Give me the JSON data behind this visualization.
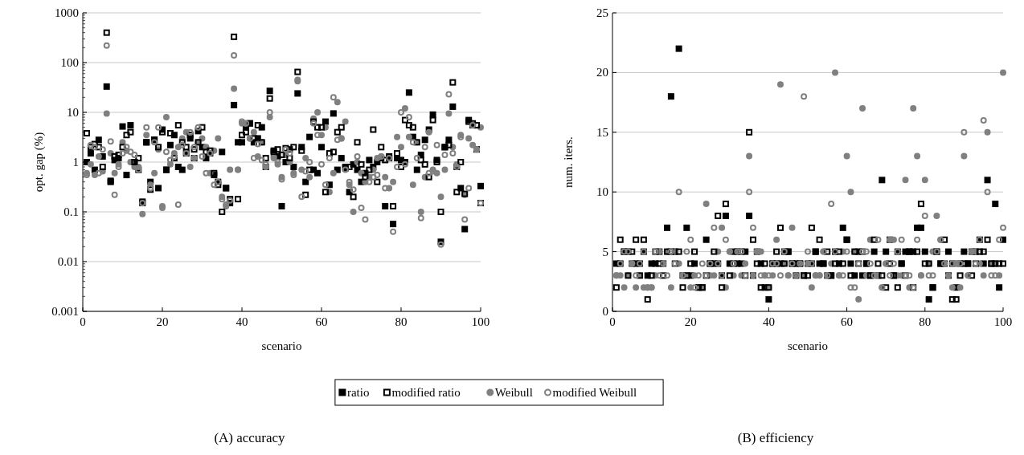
{
  "chart_data": [
    {
      "type": "scatter",
      "title": "(A) accuracy",
      "xlabel": "scenario",
      "ylabel": "opt. gap (%)",
      "log": "y",
      "grid": "y",
      "legend": "bottom",
      "xlim": [
        0,
        100
      ],
      "xticks": [
        0,
        20,
        40,
        60,
        80,
        100
      ],
      "ylim": [
        0.001,
        1000
      ],
      "yticks": [
        0.001,
        0.01,
        0.1,
        1,
        10,
        100,
        1000
      ],
      "x": [
        1,
        2,
        3,
        4,
        5,
        6,
        7,
        8,
        9,
        10,
        11,
        12,
        13,
        14,
        15,
        16,
        17,
        18,
        19,
        20,
        21,
        22,
        23,
        24,
        25,
        26,
        27,
        28,
        29,
        30,
        31,
        32,
        33,
        34,
        35,
        36,
        37,
        38,
        39,
        40,
        41,
        42,
        43,
        44,
        45,
        46,
        47,
        48,
        49,
        50,
        51,
        52,
        53,
        54,
        55,
        56,
        57,
        58,
        59,
        60,
        61,
        62,
        63,
        64,
        65,
        66,
        67,
        68,
        69,
        70,
        71,
        72,
        73,
        74,
        75,
        76,
        77,
        78,
        79,
        80,
        81,
        82,
        83,
        84,
        85,
        86,
        87,
        88,
        89,
        90,
        91,
        92,
        93,
        94,
        95,
        96,
        97,
        98,
        99,
        100
      ],
      "series": [
        {
          "name": "ratio",
          "color": "#000000",
          "marker": "square",
          "values": [
            1.0,
            1.5,
            0.7,
            2.8,
            1.3,
            33,
            0.4,
            1.1,
            1.2,
            5.2,
            0.55,
            5.5,
            1.0,
            0.7,
            0.15,
            2.5,
            0.4,
            2.8,
            0.3,
            4.5,
            0.7,
            2.2,
            3.5,
            0.8,
            0.7,
            1.5,
            3.0,
            1.2,
            4.2,
            2.0,
            1.2,
            1.5,
            0.55,
            0.4,
            1.6,
            0.3,
            0.15,
            14,
            2.5,
            2.5,
            5.0,
            6.0,
            2.5,
            3.0,
            5.0,
            0.8,
            27,
            1.7,
            1.3,
            0.13,
            1.0,
            1.8,
            0.8,
            24,
            2.0,
            0.4,
            3.2,
            0.7,
            0.6,
            2.0,
            6.5,
            0.35,
            9.5,
            0.7,
            1.2,
            0.75,
            0.25,
            0.9,
            0.7,
            0.4,
            0.6,
            1.1,
            0.8,
            1.0,
            1.2,
            0.13,
            1.3,
            0.057,
            1.2,
            1.1,
            1.0,
            25,
            3.2,
            0.7,
            1.4,
            2.8,
            4.5,
            9.0,
            1.1,
            0.025,
            2.0,
            2.8,
            13,
            0.8,
            0.3,
            0.045,
            7.0,
            5.5,
            1.8,
            0.33
          ]
        },
        {
          "name": "modified ratio",
          "color": "#000000",
          "marker": "square",
          "values": [
            3.8,
            2.0,
            2.3,
            2.0,
            0.8,
            400,
            0.42,
            1.3,
            1.4,
            2.0,
            3.5,
            4.0,
            1.0,
            1.2,
            0.16,
            2.5,
            0.28,
            2.8,
            2.0,
            4.0,
            0.7,
            3.8,
            1.2,
            5.5,
            2.5,
            2.0,
            3.5,
            1.8,
            2.5,
            5.0,
            1.6,
            1.7,
            0.6,
            0.35,
            0.1,
            0.3,
            0.18,
            330,
            0.18,
            3.5,
            4.0,
            6.0,
            3.0,
            5.5,
            2.5,
            1.2,
            19,
            1.6,
            1.8,
            1.4,
            1.9,
            1.2,
            2.0,
            65,
            1.7,
            0.22,
            0.7,
            6.5,
            5.0,
            5.0,
            0.25,
            1.5,
            1.6,
            4.0,
            5.0,
            0.8,
            0.8,
            0.2,
            2.5,
            0.9,
            0.5,
            0.7,
            4.5,
            0.4,
            2.0,
            1.1,
            1.2,
            0.13,
            1.5,
            0.8,
            7.0,
            5.5,
            5.0,
            2.5,
            1.1,
            0.9,
            0.5,
            7.0,
            1.0,
            0.1,
            2.0,
            2.2,
            40,
            0.25,
            1.0,
            0.23,
            6.5,
            6.0,
            5.5,
            0.15
          ]
        },
        {
          "name": "Weibull",
          "color": "#808080",
          "marker": "circle",
          "values": [
            0.6,
            0.9,
            0.55,
            1.3,
            0.65,
            9.5,
            1.5,
            0.6,
            0.9,
            2.5,
            1.7,
            1.0,
            0.8,
            0.8,
            0.09,
            3.5,
            0.35,
            0.6,
            1.8,
            0.13,
            8.0,
            0.9,
            1.5,
            2.0,
            3.0,
            4.0,
            0.8,
            1.2,
            2.5,
            3.0,
            2.0,
            0.6,
            1.7,
            3.0,
            0.2,
            0.13,
            0.7,
            30,
            0.7,
            6.0,
            6.0,
            3.0,
            4.0,
            1.3,
            2.5,
            0.8,
            8.0,
            1.3,
            0.9,
            0.5,
            1.4,
            1.0,
            0.6,
            45,
            0.7,
            1.2,
            0.5,
            7.5,
            10,
            3.5,
            5.0,
            0.25,
            0.6,
            16,
            3.0,
            6.5,
            0.35,
            0.1,
            1.0,
            0.6,
            0.4,
            0.5,
            0.7,
            1.2,
            1.3,
            0.5,
            0.3,
            0.4,
            3.2,
            2.0,
            12,
            3.2,
            0.35,
            2.5,
            0.1,
            0.5,
            4.0,
            0.7,
            0.6,
            0.2,
            0.7,
            9.5,
            2.0,
            0.9,
            3.5,
            0.22,
            3.0,
            2.2,
            1.8,
            5.0
          ]
        },
        {
          "name": "modified Weibull",
          "color": "#808080",
          "marker": "circle",
          "values": [
            0.55,
            2.2,
            2.0,
            0.6,
            1.8,
            220,
            2.6,
            0.22,
            0.8,
            1.5,
            2.0,
            1.6,
            1.4,
            0.7,
            0.15,
            5.0,
            0.3,
            2.5,
            5.0,
            0.12,
            1.6,
            1.1,
            1.3,
            0.14,
            2.2,
            1.5,
            4.0,
            2.0,
            5.0,
            1.3,
            0.6,
            1.5,
            0.35,
            0.4,
            0.18,
            0.14,
            0.17,
            140,
            0.7,
            6.5,
            6.0,
            3.0,
            1.2,
            2.3,
            1.1,
            0.9,
            10,
            1.2,
            1.0,
            0.45,
            1.8,
            1.5,
            0.55,
            42,
            0.2,
            0.65,
            1.0,
            6.0,
            3.5,
            0.9,
            0.35,
            1.2,
            20,
            2.8,
            3.0,
            0.7,
            0.4,
            0.28,
            1.3,
            0.12,
            0.07,
            0.4,
            0.5,
            0.55,
            1.3,
            0.3,
            1.2,
            0.04,
            0.8,
            10,
            0.9,
            8.0,
            2.5,
            1.2,
            0.075,
            2.0,
            0.6,
            0.65,
            2.2,
            0.022,
            1.4,
            23,
            1.5,
            0.8,
            3.2,
            0.07,
            0.3,
            5.5,
            1.8,
            0.15
          ]
        }
      ]
    },
    {
      "type": "scatter",
      "title": "(B) efficiency",
      "xlabel": "scenario",
      "ylabel": "num. iters.",
      "grid": "y",
      "xlim": [
        0,
        100
      ],
      "xticks": [
        0,
        20,
        40,
        60,
        80,
        100
      ],
      "ylim": [
        0,
        25
      ],
      "yticks": [
        0,
        5,
        10,
        15,
        20,
        25
      ],
      "x": [
        1,
        2,
        3,
        4,
        5,
        6,
        7,
        8,
        9,
        10,
        11,
        12,
        13,
        14,
        15,
        16,
        17,
        18,
        19,
        20,
        21,
        22,
        23,
        24,
        25,
        26,
        27,
        28,
        29,
        30,
        31,
        32,
        33,
        34,
        35,
        36,
        37,
        38,
        39,
        40,
        41,
        42,
        43,
        44,
        45,
        46,
        47,
        48,
        49,
        50,
        51,
        52,
        53,
        54,
        55,
        56,
        57,
        58,
        59,
        60,
        61,
        62,
        63,
        64,
        65,
        66,
        67,
        68,
        69,
        70,
        71,
        72,
        73,
        74,
        75,
        76,
        77,
        78,
        79,
        80,
        81,
        82,
        83,
        84,
        85,
        86,
        87,
        88,
        89,
        90,
        91,
        92,
        93,
        94,
        95,
        96,
        97,
        98,
        99,
        100
      ],
      "series": [
        {
          "color": "#000000",
          "marker": "square",
          "values": [
            4,
            4,
            5,
            5,
            4,
            4,
            4,
            5,
            3,
            4,
            4,
            5,
            4,
            7,
            18,
            5,
            22,
            3,
            7,
            3,
            4,
            2,
            2,
            6,
            4,
            4,
            4,
            3,
            8,
            4,
            5,
            4,
            4,
            5,
            8,
            3,
            5,
            4,
            2,
            1,
            4,
            4,
            4,
            5,
            5,
            4,
            4,
            4,
            3,
            4,
            4,
            5,
            4,
            4,
            3,
            3,
            5,
            4,
            7,
            6,
            4,
            3,
            5,
            3,
            4,
            3,
            5,
            3,
            11,
            5,
            6,
            3,
            5,
            4,
            5,
            5,
            5,
            7,
            7,
            5,
            1,
            2,
            5,
            4,
            4,
            5,
            4,
            2,
            4,
            5,
            4,
            5,
            5,
            6,
            4,
            11,
            4,
            9,
            2,
            6
          ]
        },
        {
          "color": "#000000",
          "marker": "square",
          "values": [
            2,
            6,
            5,
            3,
            5,
            6,
            3,
            6,
            1,
            3,
            5,
            4,
            3,
            5,
            5,
            4,
            5,
            2,
            3,
            4,
            5,
            2,
            2,
            3,
            4,
            5,
            8,
            2,
            9,
            3,
            4,
            5,
            5,
            3,
            15,
            6,
            4,
            2,
            4,
            2,
            4,
            5,
            7,
            4,
            5,
            4,
            3,
            4,
            3,
            3,
            7,
            5,
            6,
            4,
            5,
            3,
            4,
            5,
            4,
            6,
            3,
            5,
            4,
            5,
            4,
            3,
            6,
            4,
            3,
            2,
            4,
            3,
            2,
            4,
            3,
            5,
            2,
            5,
            9,
            4,
            4,
            2,
            5,
            4,
            6,
            3,
            1,
            1,
            3,
            4,
            4,
            3,
            4,
            5,
            5,
            6,
            4,
            4,
            4,
            4
          ]
        },
        {
          "color": "#808080",
          "marker": "circle",
          "values": [
            3,
            3,
            2,
            3,
            4,
            2,
            3,
            2,
            2,
            2,
            3,
            5,
            4,
            5,
            2,
            5,
            4,
            3,
            3,
            2,
            3,
            2,
            2,
            9,
            3,
            3,
            5,
            7,
            2,
            5,
            3,
            5,
            3,
            4,
            13,
            3,
            5,
            5,
            3,
            2,
            3,
            6,
            19,
            4,
            3,
            7,
            3,
            4,
            3,
            4,
            2,
            3,
            3,
            5,
            3,
            4,
            20,
            3,
            5,
            13,
            10,
            5,
            1,
            17,
            3,
            6,
            3,
            3,
            2,
            4,
            6,
            6,
            3,
            3,
            11,
            2,
            17,
            13,
            3,
            11,
            4,
            5,
            8,
            6,
            4,
            3,
            2,
            4,
            2,
            13,
            3,
            5,
            5,
            4,
            3,
            15,
            4,
            4,
            3,
            20
          ]
        },
        {
          "color": "#808080",
          "marker": "circle",
          "values": [
            3,
            4,
            5,
            5,
            4,
            3,
            4,
            5,
            2,
            2,
            5,
            3,
            4,
            3,
            5,
            4,
            10,
            3,
            5,
            6,
            2,
            3,
            4,
            3,
            4,
            7,
            4,
            3,
            6,
            5,
            4,
            5,
            5,
            3,
            10,
            7,
            5,
            3,
            3,
            3,
            4,
            4,
            3,
            5,
            3,
            4,
            3,
            4,
            18,
            5,
            4,
            3,
            3,
            5,
            3,
            9,
            5,
            3,
            3,
            5,
            2,
            2,
            4,
            5,
            5,
            4,
            3,
            6,
            2,
            4,
            3,
            4,
            5,
            6,
            3,
            3,
            2,
            6,
            3,
            8,
            3,
            3,
            5,
            6,
            4,
            3,
            4,
            4,
            4,
            15,
            3,
            5,
            4,
            6,
            16,
            10,
            3,
            3,
            6,
            7
          ]
        }
      ]
    }
  ]
}
